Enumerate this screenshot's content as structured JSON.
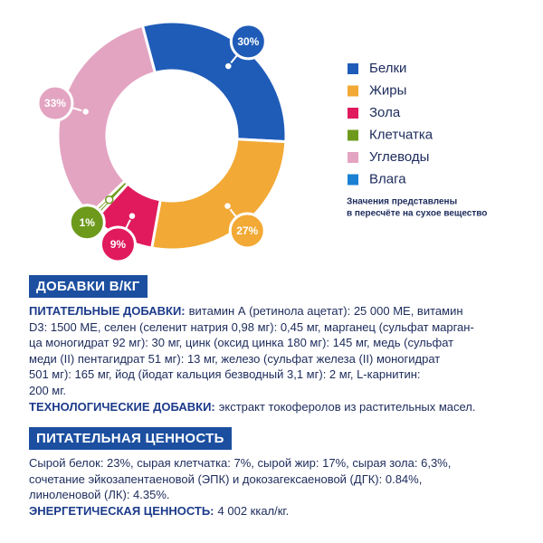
{
  "chart_data": {
    "type": "donut",
    "categories": [
      "Белки",
      "Жиры",
      "Зола",
      "Клетчатка",
      "Углеводы",
      "Влага"
    ],
    "values": [
      30,
      27,
      9,
      1,
      33,
      null
    ],
    "value_labels": [
      "30%",
      "27%",
      "9%",
      "1%",
      "33%",
      null
    ],
    "colors": [
      "#1f5cb8",
      "#f2a935",
      "#e01a5c",
      "#6e9a1c",
      "#e3a4c2",
      "#1a80d2"
    ],
    "note": [
      "Значения представлены",
      "в пересчёте на сухое вещество"
    ]
  },
  "sections": [
    {
      "heading": "ДОБАВКИ В/КГ",
      "paragraphs": [
        {
          "bold": "ПИТАТЕЛЬНЫЕ ДОБАВКИ:",
          "lines": [
            "витамин А (ретинола ацетат): 25 000 МЕ, витамин",
            "D3: 1500 МЕ, селен (селенит натрия 0,98 мг): 0,45 мг, марганец (сульфат марган-",
            "ца моногидрат 92 мг): 30 мг, цинк (оксид цинка 180 мг): 145 мг, медь (сульфат",
            "меди (II) пентагидрат 51 мг): 13 мг, железо (сульфат железа (II) моногидрат",
            "501 мг): 165 мг, йод (йодат кальция безводный 3,1 мг): 2 мг, L-карнитин:",
            "200 мг."
          ]
        },
        {
          "bold": "ТЕХНОЛОГИЧЕСКИЕ ДОБАВКИ:",
          "lines": [
            "экстракт токоферолов из растительных масел."
          ]
        }
      ]
    },
    {
      "heading": "ПИТАТЕЛЬНАЯ ЦЕННОСТЬ",
      "paragraphs": [
        {
          "lines": [
            "Сырой белок: 23%, сырая клетчатка: 7%, сырой жир: 17%, сырая зола: 6,3%,",
            "сочетание эйкозапентаеновой (ЭПК) и докозагексаеновой (ДГК): 0.84%,",
            "линоленовой (ЛК): 4.35%."
          ]
        },
        {
          "bold": "ЭНЕРГЕТИЧЕСКАЯ ЦЕННОСТЬ:",
          "lines": [
            "4 002 ккал/кг."
          ]
        }
      ]
    }
  ]
}
